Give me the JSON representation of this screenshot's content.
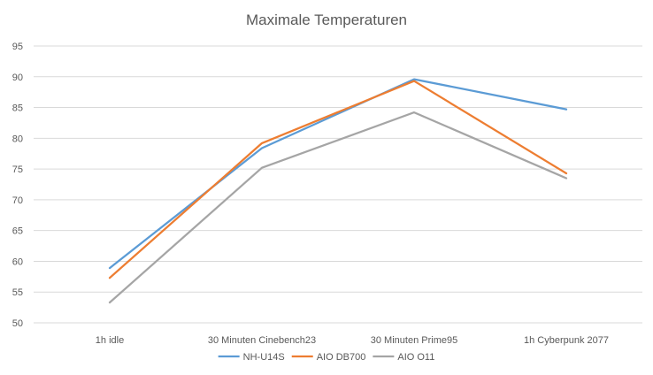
{
  "chart_data": {
    "type": "line",
    "title": "Maximale Temperaturen",
    "xlabel": "",
    "ylabel": "",
    "categories": [
      "1h idle",
      "30 Minuten Cinebench23",
      "30 Minuten Prime95",
      "1h Cyberpunk 2077"
    ],
    "ylim": [
      50,
      95
    ],
    "yticks": [
      50,
      55,
      60,
      65,
      70,
      75,
      80,
      85,
      90,
      95
    ],
    "grid": true,
    "legend_position": "bottom",
    "series": [
      {
        "name": "NH-U14S",
        "color": "#5b9bd5",
        "values": [
          58.9,
          78.4,
          89.6,
          84.7
        ]
      },
      {
        "name": "AIO DB700",
        "color": "#ed7d31",
        "values": [
          57.3,
          79.2,
          89.3,
          74.3
        ]
      },
      {
        "name": "AIO O11",
        "color": "#a5a5a5",
        "values": [
          53.3,
          75.2,
          84.2,
          73.5
        ]
      }
    ]
  }
}
